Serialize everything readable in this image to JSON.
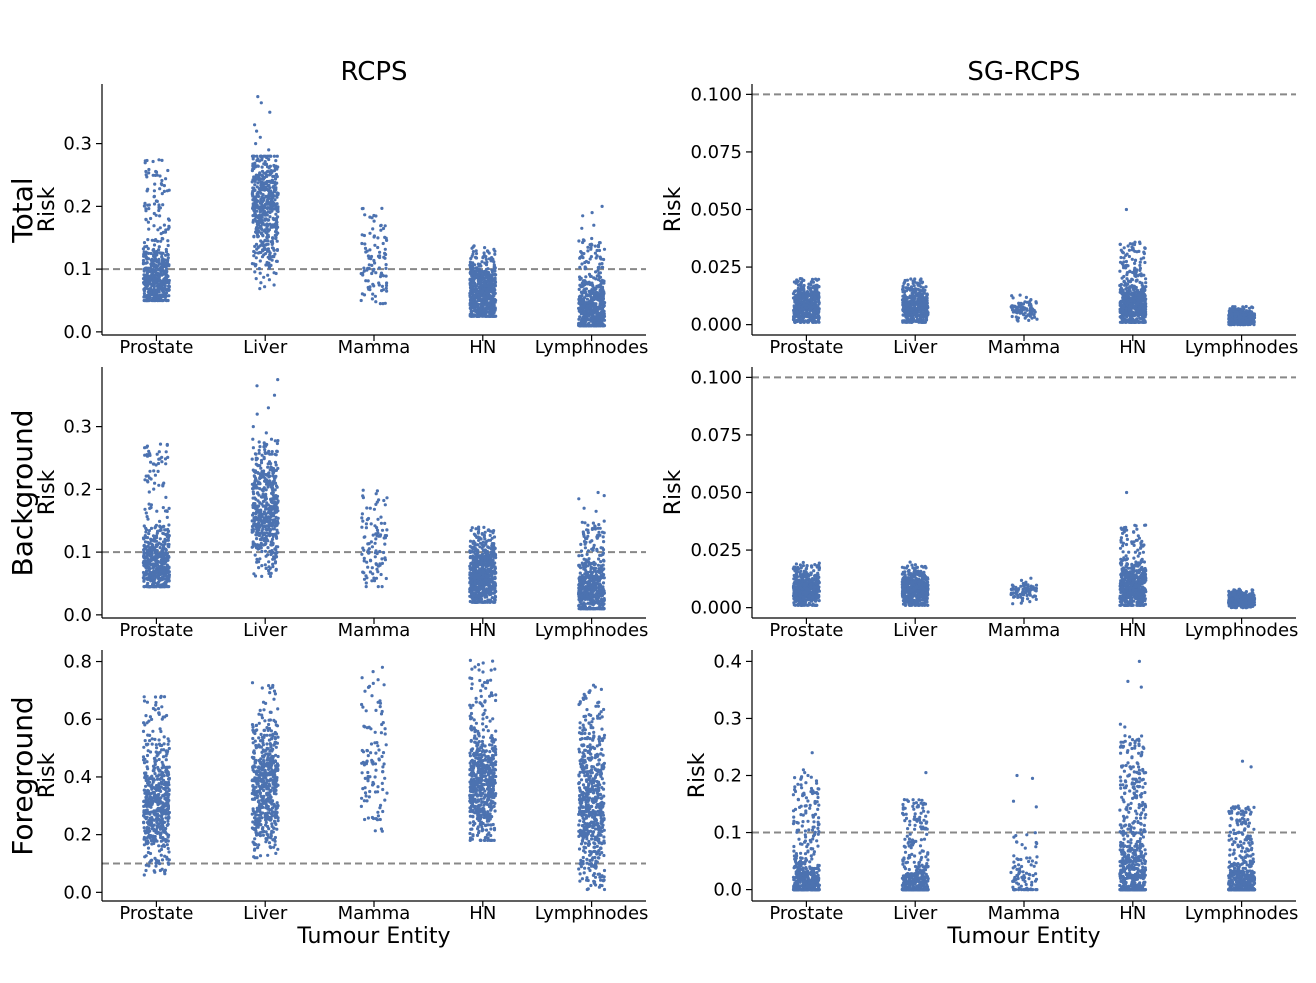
{
  "figure": {
    "col_titles": [
      "RCPS",
      "SG-RCPS"
    ],
    "row_titles": [
      "Total",
      "Background",
      "Foreground"
    ],
    "xlabel": "Tumour Entity",
    "ylabel": "Risk"
  },
  "chart_data": [
    {
      "type": "scatter",
      "row": "Total",
      "column": "RCPS",
      "categories": [
        "Prostate",
        "Liver",
        "Mamma",
        "HN",
        "Lymphnodes"
      ],
      "ylabel": "Risk",
      "xlabel": "",
      "ylim": [
        -0.005,
        0.395
      ],
      "yticks": [
        0.0,
        0.1,
        0.2,
        0.3
      ],
      "tick_format": "1",
      "threshold": 0.1,
      "marker_color": "#4c72b0",
      "groups": [
        {
          "name": "Prostate",
          "n": 500,
          "lo": 0.05,
          "hi": 0.275,
          "peak": 0.08,
          "spread": 0.025,
          "wmain": 0.75,
          "extra": []
        },
        {
          "name": "Liver",
          "n": 500,
          "lo": 0.065,
          "hi": 0.28,
          "peak": 0.2,
          "spread": 0.045,
          "wmain": 0.8,
          "extra": [
            0.375,
            0.365,
            0.35,
            0.33,
            0.32,
            0.31,
            0.3,
            0.29
          ]
        },
        {
          "name": "Mamma",
          "n": 100,
          "lo": 0.045,
          "hi": 0.2,
          "peak": 0.11,
          "spread": 0.04,
          "wmain": 0.6,
          "extra": []
        },
        {
          "name": "HN",
          "n": 600,
          "lo": 0.025,
          "hi": 0.14,
          "peak": 0.06,
          "spread": 0.025,
          "wmain": 0.8,
          "extra": []
        },
        {
          "name": "Lymphnodes",
          "n": 550,
          "lo": 0.01,
          "hi": 0.15,
          "peak": 0.035,
          "spread": 0.025,
          "wmain": 0.8,
          "extra": [
            0.2,
            0.19,
            0.185,
            0.17,
            0.165
          ]
        }
      ]
    },
    {
      "type": "scatter",
      "row": "Total",
      "column": "SG-RCPS",
      "categories": [
        "Prostate",
        "Liver",
        "Mamma",
        "HN",
        "Lymphnodes"
      ],
      "ylabel": "Risk",
      "xlabel": "",
      "ylim": [
        -0.0045,
        0.1045
      ],
      "yticks": [
        0.0,
        0.025,
        0.05,
        0.075,
        0.1
      ],
      "tick_format": "3",
      "threshold": 0.1,
      "marker_color": "#4c72b0",
      "groups": [
        {
          "name": "Prostate",
          "n": 500,
          "lo": 0.001,
          "hi": 0.02,
          "peak": 0.008,
          "spread": 0.004,
          "wmain": 0.8,
          "extra": []
        },
        {
          "name": "Liver",
          "n": 450,
          "lo": 0.001,
          "hi": 0.02,
          "peak": 0.008,
          "spread": 0.004,
          "wmain": 0.8,
          "extra": []
        },
        {
          "name": "Mamma",
          "n": 90,
          "lo": 0.0,
          "hi": 0.013,
          "peak": 0.007,
          "spread": 0.002,
          "wmain": 0.8,
          "extra": []
        },
        {
          "name": "HN",
          "n": 550,
          "lo": 0.001,
          "hi": 0.036,
          "peak": 0.009,
          "spread": 0.005,
          "wmain": 0.75,
          "extra": [
            0.05
          ]
        },
        {
          "name": "Lymphnodes",
          "n": 500,
          "lo": 0.0,
          "hi": 0.008,
          "peak": 0.003,
          "spread": 0.0015,
          "wmain": 0.8,
          "extra": []
        }
      ]
    },
    {
      "type": "scatter",
      "row": "Background",
      "column": "RCPS",
      "categories": [
        "Prostate",
        "Liver",
        "Mamma",
        "HN",
        "Lymphnodes"
      ],
      "ylabel": "Risk",
      "xlabel": "",
      "ylim": [
        -0.005,
        0.395
      ],
      "yticks": [
        0.0,
        0.1,
        0.2,
        0.3
      ],
      "tick_format": "1",
      "threshold": 0.1,
      "marker_color": "#4c72b0",
      "groups": [
        {
          "name": "Prostate",
          "n": 500,
          "lo": 0.045,
          "hi": 0.275,
          "peak": 0.08,
          "spread": 0.025,
          "wmain": 0.75,
          "extra": []
        },
        {
          "name": "Liver",
          "n": 500,
          "lo": 0.06,
          "hi": 0.28,
          "peak": 0.17,
          "spread": 0.045,
          "wmain": 0.8,
          "extra": [
            0.375,
            0.365,
            0.35,
            0.33,
            0.32,
            0.3,
            0.29
          ]
        },
        {
          "name": "Mamma",
          "n": 100,
          "lo": 0.045,
          "hi": 0.2,
          "peak": 0.11,
          "spread": 0.04,
          "wmain": 0.6,
          "extra": []
        },
        {
          "name": "HN",
          "n": 600,
          "lo": 0.02,
          "hi": 0.14,
          "peak": 0.06,
          "spread": 0.025,
          "wmain": 0.8,
          "extra": []
        },
        {
          "name": "Lymphnodes",
          "n": 550,
          "lo": 0.01,
          "hi": 0.15,
          "peak": 0.035,
          "spread": 0.025,
          "wmain": 0.8,
          "extra": [
            0.195,
            0.19,
            0.185,
            0.17,
            0.165
          ]
        }
      ]
    },
    {
      "type": "scatter",
      "row": "Background",
      "column": "SG-RCPS",
      "categories": [
        "Prostate",
        "Liver",
        "Mamma",
        "HN",
        "Lymphnodes"
      ],
      "ylabel": "Risk",
      "xlabel": "",
      "ylim": [
        -0.0045,
        0.1045
      ],
      "yticks": [
        0.0,
        0.025,
        0.05,
        0.075,
        0.1
      ],
      "tick_format": "3",
      "threshold": 0.1,
      "marker_color": "#4c72b0",
      "groups": [
        {
          "name": "Prostate",
          "n": 500,
          "lo": 0.001,
          "hi": 0.02,
          "peak": 0.008,
          "spread": 0.004,
          "wmain": 0.8,
          "extra": []
        },
        {
          "name": "Liver",
          "n": 450,
          "lo": 0.001,
          "hi": 0.02,
          "peak": 0.008,
          "spread": 0.004,
          "wmain": 0.8,
          "extra": []
        },
        {
          "name": "Mamma",
          "n": 90,
          "lo": 0.0,
          "hi": 0.013,
          "peak": 0.007,
          "spread": 0.002,
          "wmain": 0.8,
          "extra": []
        },
        {
          "name": "HN",
          "n": 550,
          "lo": 0.001,
          "hi": 0.036,
          "peak": 0.009,
          "spread": 0.005,
          "wmain": 0.75,
          "extra": [
            0.05
          ]
        },
        {
          "name": "Lymphnodes",
          "n": 500,
          "lo": 0.0,
          "hi": 0.008,
          "peak": 0.003,
          "spread": 0.0015,
          "wmain": 0.8,
          "extra": []
        }
      ]
    },
    {
      "type": "scatter",
      "row": "Foreground",
      "column": "RCPS",
      "categories": [
        "Prostate",
        "Liver",
        "Mamma",
        "HN",
        "Lymphnodes"
      ],
      "ylabel": "Risk",
      "xlabel": "Tumour Entity",
      "ylim": [
        -0.03,
        0.84
      ],
      "yticks": [
        0.0,
        0.2,
        0.4,
        0.6,
        0.8
      ],
      "tick_format": "1",
      "threshold": 0.1,
      "marker_color": "#4c72b0",
      "groups": [
        {
          "name": "Prostate",
          "n": 550,
          "lo": 0.06,
          "hi": 0.68,
          "peak": 0.3,
          "spread": 0.1,
          "wmain": 0.8,
          "extra": []
        },
        {
          "name": "Liver",
          "n": 550,
          "lo": 0.12,
          "hi": 0.73,
          "peak": 0.37,
          "spread": 0.1,
          "wmain": 0.8,
          "extra": []
        },
        {
          "name": "Mamma",
          "n": 110,
          "lo": 0.2,
          "hi": 0.78,
          "peak": 0.45,
          "spread": 0.12,
          "wmain": 0.6,
          "extra": []
        },
        {
          "name": "HN",
          "n": 600,
          "lo": 0.18,
          "hi": 0.81,
          "peak": 0.38,
          "spread": 0.1,
          "wmain": 0.8,
          "extra": []
        },
        {
          "name": "Lymphnodes",
          "n": 600,
          "lo": 0.01,
          "hi": 0.72,
          "peak": 0.3,
          "spread": 0.13,
          "wmain": 0.7,
          "extra": []
        }
      ]
    },
    {
      "type": "scatter",
      "row": "Foreground",
      "column": "SG-RCPS",
      "categories": [
        "Prostate",
        "Liver",
        "Mamma",
        "HN",
        "Lymphnodes"
      ],
      "ylabel": "Risk",
      "xlabel": "Tumour Entity",
      "ylim": [
        -0.02,
        0.42
      ],
      "yticks": [
        0.0,
        0.1,
        0.2,
        0.3,
        0.4
      ],
      "tick_format": "1",
      "threshold": 0.1,
      "marker_color": "#4c72b0",
      "groups": [
        {
          "name": "Prostate",
          "n": 500,
          "lo": 0.0,
          "hi": 0.2,
          "peak": 0.005,
          "spread": 0.02,
          "wmain": 0.7,
          "extra": [
            0.24,
            0.21,
            0.205,
            0.2
          ]
        },
        {
          "name": "Liver",
          "n": 450,
          "lo": 0.0,
          "hi": 0.16,
          "peak": 0.005,
          "spread": 0.02,
          "wmain": 0.7,
          "extra": [
            0.205
          ]
        },
        {
          "name": "Mamma",
          "n": 90,
          "lo": 0.0,
          "hi": 0.1,
          "peak": 0.01,
          "spread": 0.02,
          "wmain": 0.6,
          "extra": [
            0.2,
            0.195,
            0.155,
            0.145
          ]
        },
        {
          "name": "HN",
          "n": 600,
          "lo": 0.0,
          "hi": 0.27,
          "peak": 0.01,
          "spread": 0.04,
          "wmain": 0.6,
          "extra": [
            0.4,
            0.365,
            0.355,
            0.29,
            0.285
          ]
        },
        {
          "name": "Lymphnodes",
          "n": 500,
          "lo": 0.0,
          "hi": 0.15,
          "peak": 0.005,
          "spread": 0.02,
          "wmain": 0.7,
          "extra": [
            0.225,
            0.215
          ]
        }
      ]
    }
  ]
}
